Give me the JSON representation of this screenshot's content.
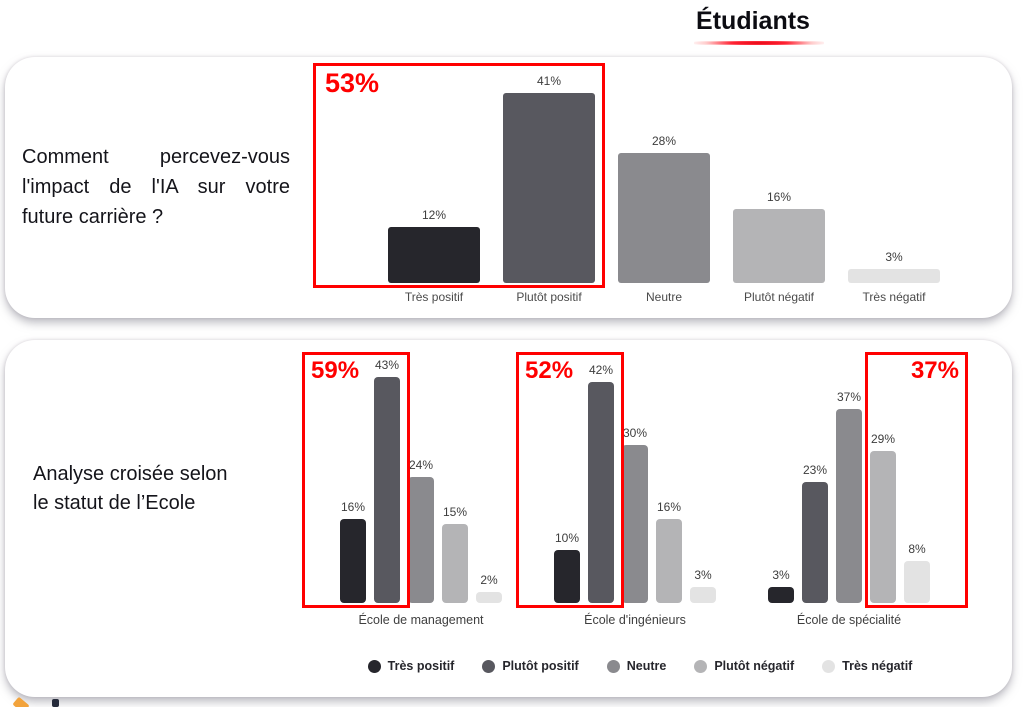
{
  "header": {
    "title": "Étudiants"
  },
  "colors": {
    "series": [
      "#26262c",
      "#58585f",
      "#8a8a8e",
      "#b4b4b6",
      "#e3e3e3"
    ],
    "highlight": "#ff0000"
  },
  "chart_data": [
    {
      "type": "bar",
      "panel_title": "Comment percevez-vous l'impact de l'IA sur votre future carrière ?",
      "panel_title_lines": [
        "Comment percevez-vous",
        "l'impact de l'IA sur votre",
        "future carrière ?"
      ],
      "categories": [
        "Très positif",
        "Plutôt positif",
        "Neutre",
        "Plutôt négatif",
        "Très négatif"
      ],
      "values": [
        12,
        41,
        28,
        16,
        3
      ],
      "unit": "%",
      "ylim": [
        0,
        45
      ],
      "grid": false,
      "highlight_box": {
        "label": "53%",
        "covers": [
          0,
          1
        ],
        "label_side": "left"
      }
    },
    {
      "type": "bar",
      "panel_title": "Analyse croisée selon le statut de l’Ecole",
      "panel_title_lines": [
        "Analyse croisée selon",
        "le statut de l’Ecole"
      ],
      "categories": [
        "Très positif",
        "Plutôt positif",
        "Neutre",
        "Plutôt négatif",
        "Très négatif"
      ],
      "unit": "%",
      "ylim": [
        0,
        45
      ],
      "grid": false,
      "legend_position": "bottom",
      "legend": [
        "Très positif",
        "Plutôt positif",
        "Neutre",
        "Plutôt négatif",
        "Très négatif"
      ],
      "groups": [
        {
          "label": "École de management",
          "values": [
            16,
            43,
            24,
            15,
            2
          ],
          "highlight_box": {
            "label": "59%",
            "covers": [
              0,
              1
            ],
            "label_side": "left"
          }
        },
        {
          "label": "École d'ingénieurs",
          "values": [
            10,
            42,
            30,
            16,
            3
          ],
          "highlight_box": {
            "label": "52%",
            "covers": [
              0,
              1
            ],
            "label_side": "left"
          }
        },
        {
          "label": "École de spécialité",
          "values": [
            3,
            23,
            37,
            29,
            8
          ],
          "highlight_box": {
            "label": "37%",
            "covers": [
              3,
              4
            ],
            "label_side": "right"
          }
        }
      ]
    }
  ]
}
